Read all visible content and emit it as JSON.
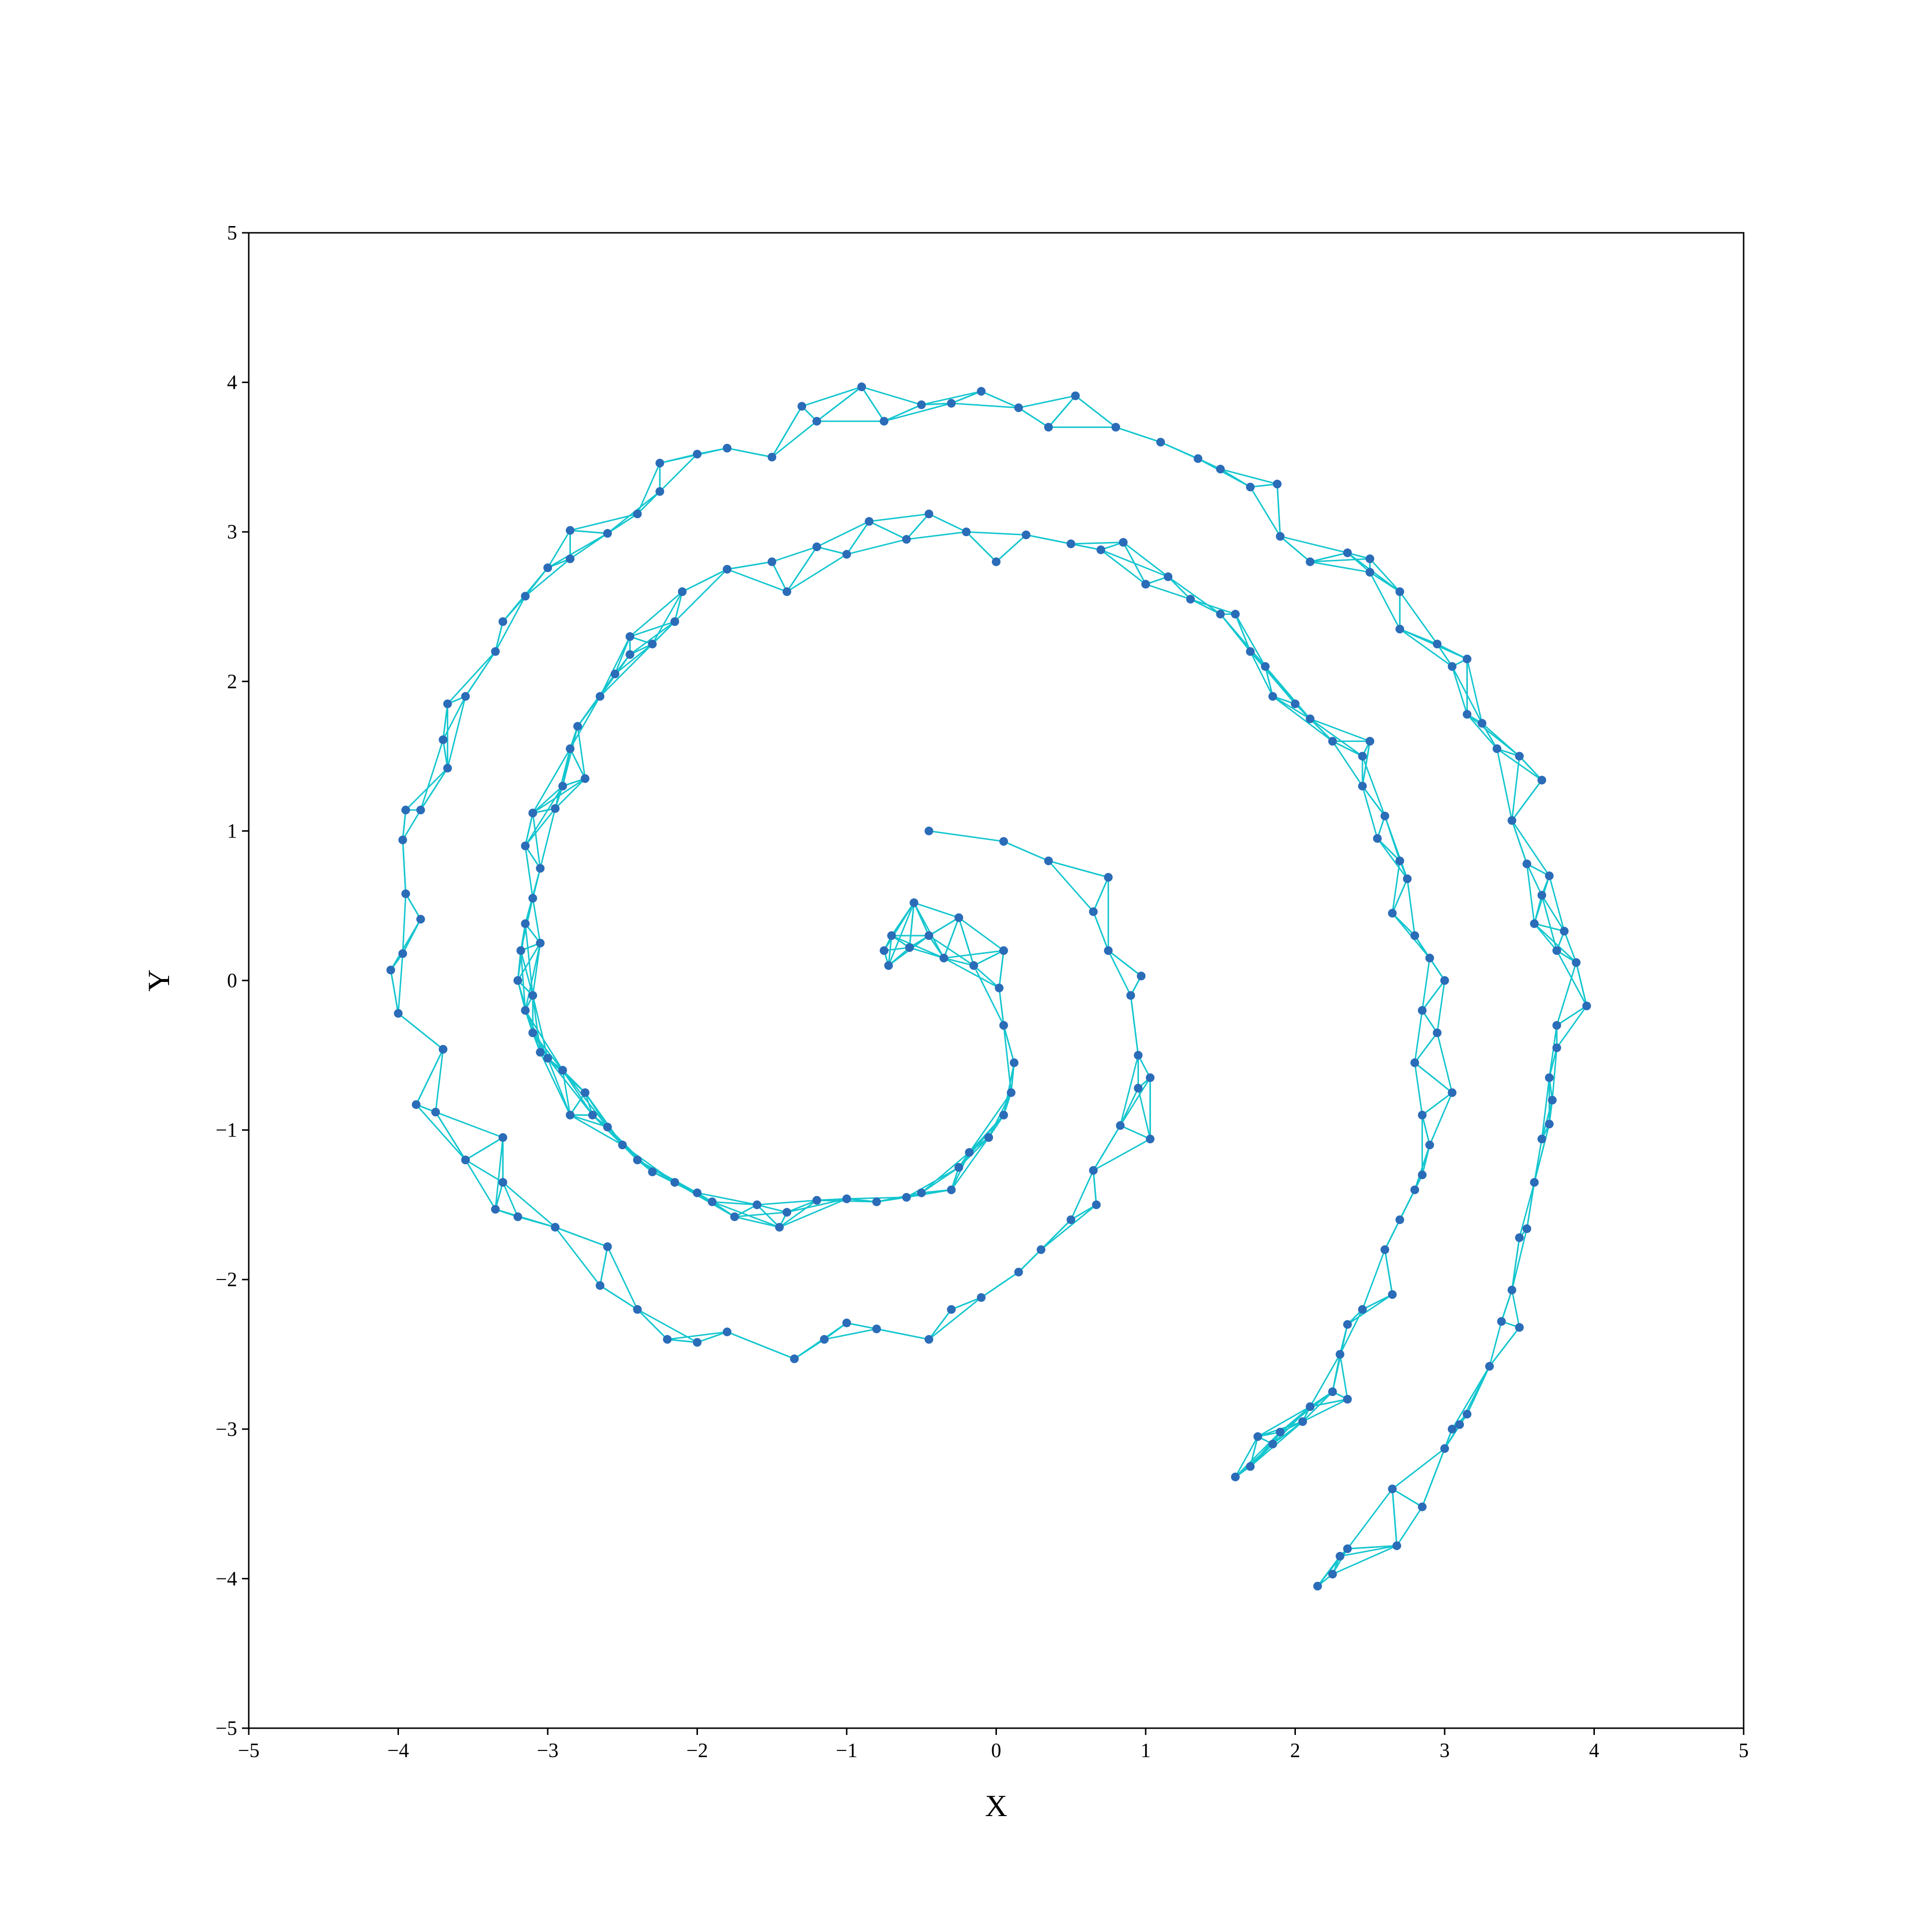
{
  "chart_data": {
    "type": "scatter",
    "title": "",
    "xlabel": "X",
    "ylabel": "Y",
    "xlim": [
      -5,
      5
    ],
    "ylim": [
      -5,
      5
    ],
    "xticks": [
      -5,
      -4,
      -3,
      -2,
      -1,
      0,
      1,
      2,
      3,
      4,
      5
    ],
    "yticks": [
      -5,
      -4,
      -3,
      -2,
      -1,
      0,
      1,
      2,
      3,
      4,
      5
    ],
    "xtick_labels": [
      "−5",
      "−4",
      "−3",
      "−2",
      "−1",
      "0",
      "1",
      "2",
      "3",
      "4",
      "5"
    ],
    "ytick_labels": [
      "−5",
      "−4",
      "−3",
      "−2",
      "−1",
      "0",
      "1",
      "2",
      "3",
      "4",
      "5"
    ],
    "grid": false,
    "legend": "none",
    "colors": {
      "points": "#2b6cb8",
      "edges": "#14c6cf"
    },
    "series": [
      {
        "values": [
          [
            -0.45,
            1.0
          ],
          [
            0.05,
            0.93
          ],
          [
            0.35,
            0.8
          ],
          [
            0.75,
            0.69
          ],
          [
            0.65,
            0.46
          ],
          [
            0.75,
            0.2
          ],
          [
            0.97,
            0.03
          ],
          [
            0.9,
            -0.1
          ],
          [
            0.95,
            -0.5
          ],
          [
            0.95,
            -0.72
          ],
          [
            1.03,
            -0.65
          ],
          [
            1.03,
            -1.06
          ],
          [
            0.83,
            -0.97
          ],
          [
            0.65,
            -1.27
          ],
          [
            0.67,
            -1.5
          ],
          [
            0.5,
            -1.6
          ],
          [
            0.3,
            -1.8
          ],
          [
            0.15,
            -1.95
          ],
          [
            -0.1,
            -2.12
          ],
          [
            -0.3,
            -2.2
          ],
          [
            -0.45,
            -2.4
          ],
          [
            -0.8,
            -2.33
          ],
          [
            -1.0,
            -2.29
          ],
          [
            -1.15,
            -2.4
          ],
          [
            -1.35,
            -2.53
          ],
          [
            -1.8,
            -2.35
          ],
          [
            -2.0,
            -2.42
          ],
          [
            -2.2,
            -2.4
          ],
          [
            -2.4,
            -2.2
          ],
          [
            -2.65,
            -2.04
          ],
          [
            -2.6,
            -1.78
          ],
          [
            -2.95,
            -1.65
          ],
          [
            -3.2,
            -1.58
          ],
          [
            -3.35,
            -1.53
          ],
          [
            -3.3,
            -1.35
          ],
          [
            -3.3,
            -1.05
          ],
          [
            -3.55,
            -1.2
          ],
          [
            -3.75,
            -0.88
          ],
          [
            -3.88,
            -0.83
          ],
          [
            -3.7,
            -0.46
          ],
          [
            -4.0,
            -0.22
          ],
          [
            -4.05,
            0.07
          ],
          [
            -3.97,
            0.18
          ],
          [
            -3.85,
            0.41
          ],
          [
            -3.95,
            0.58
          ],
          [
            -3.97,
            0.94
          ],
          [
            -3.95,
            1.14
          ],
          [
            -3.85,
            1.14
          ],
          [
            -3.67,
            1.42
          ],
          [
            -3.7,
            1.61
          ],
          [
            -3.67,
            1.85
          ],
          [
            -3.55,
            1.9
          ],
          [
            -3.35,
            2.2
          ],
          [
            -3.3,
            2.4
          ],
          [
            -3.15,
            2.57
          ],
          [
            -3.0,
            2.76
          ],
          [
            -2.85,
            2.82
          ],
          [
            -2.85,
            3.01
          ],
          [
            -2.6,
            2.99
          ],
          [
            -2.4,
            3.12
          ],
          [
            -2.25,
            3.27
          ],
          [
            -2.25,
            3.46
          ],
          [
            -2.0,
            3.52
          ],
          [
            -1.8,
            3.56
          ],
          [
            -1.5,
            3.5
          ],
          [
            -1.3,
            3.84
          ],
          [
            -1.2,
            3.74
          ],
          [
            -0.9,
            3.97
          ],
          [
            -0.75,
            3.74
          ],
          [
            -0.5,
            3.85
          ],
          [
            -0.3,
            3.86
          ],
          [
            -0.1,
            3.94
          ],
          [
            0.15,
            3.83
          ],
          [
            0.35,
            3.7
          ],
          [
            0.53,
            3.91
          ],
          [
            0.8,
            3.7
          ],
          [
            1.1,
            3.6
          ],
          [
            1.35,
            3.49
          ],
          [
            1.5,
            3.42
          ],
          [
            1.7,
            3.3
          ],
          [
            1.88,
            3.32
          ],
          [
            1.9,
            2.97
          ],
          [
            2.1,
            2.8
          ],
          [
            2.35,
            2.86
          ],
          [
            2.5,
            2.82
          ],
          [
            2.5,
            2.73
          ],
          [
            2.7,
            2.6
          ],
          [
            2.7,
            2.35
          ],
          [
            2.95,
            2.25
          ],
          [
            3.05,
            2.1
          ],
          [
            3.15,
            2.15
          ],
          [
            3.15,
            1.78
          ],
          [
            3.25,
            1.72
          ],
          [
            3.35,
            1.55
          ],
          [
            3.5,
            1.5
          ],
          [
            3.65,
            1.34
          ],
          [
            3.45,
            1.07
          ],
          [
            3.55,
            0.78
          ],
          [
            3.7,
            0.7
          ],
          [
            3.65,
            0.57
          ],
          [
            3.6,
            0.38
          ],
          [
            3.8,
            0.33
          ],
          [
            3.75,
            0.2
          ],
          [
            3.88,
            0.12
          ],
          [
            3.95,
            -0.17
          ],
          [
            3.75,
            -0.3
          ],
          [
            3.75,
            -0.45
          ],
          [
            3.7,
            -0.65
          ],
          [
            3.72,
            -0.8
          ],
          [
            3.65,
            -1.06
          ],
          [
            3.7,
            -0.96
          ],
          [
            3.6,
            -1.35
          ],
          [
            3.55,
            -1.66
          ],
          [
            3.5,
            -1.72
          ],
          [
            3.45,
            -2.07
          ],
          [
            3.38,
            -2.28
          ],
          [
            3.5,
            -2.32
          ],
          [
            3.3,
            -2.58
          ],
          [
            3.15,
            -2.9
          ],
          [
            3.1,
            -2.97
          ],
          [
            3.0,
            -3.13
          ],
          [
            3.05,
            -3.0
          ],
          [
            2.85,
            -3.52
          ],
          [
            2.65,
            -3.4
          ],
          [
            2.68,
            -3.78
          ],
          [
            2.35,
            -3.8
          ],
          [
            2.3,
            -3.85
          ],
          [
            2.25,
            -3.97
          ],
          [
            2.15,
            -4.05
          ]
        ]
      },
      {
        "values": [
          [
            -0.75,
            0.2
          ],
          [
            -0.72,
            0.1
          ],
          [
            -0.7,
            0.3
          ],
          [
            -0.58,
            0.22
          ],
          [
            -0.55,
            0.52
          ],
          [
            -0.45,
            0.3
          ],
          [
            -0.35,
            0.15
          ],
          [
            -0.25,
            0.42
          ],
          [
            -0.15,
            0.1
          ],
          [
            0.05,
            0.2
          ],
          [
            0.02,
            -0.05
          ],
          [
            0.05,
            -0.3
          ],
          [
            0.12,
            -0.55
          ],
          [
            0.1,
            -0.75
          ],
          [
            0.05,
            -0.9
          ],
          [
            -0.05,
            -1.05
          ],
          [
            -0.18,
            -1.15
          ],
          [
            -0.25,
            -1.25
          ],
          [
            -0.3,
            -1.4
          ],
          [
            -0.5,
            -1.42
          ],
          [
            -0.6,
            -1.45
          ],
          [
            -0.8,
            -1.48
          ],
          [
            -1.0,
            -1.46
          ],
          [
            -1.2,
            -1.47
          ],
          [
            -1.4,
            -1.55
          ],
          [
            -1.45,
            -1.65
          ],
          [
            -1.6,
            -1.5
          ],
          [
            -1.75,
            -1.58
          ],
          [
            -1.9,
            -1.48
          ],
          [
            -2.0,
            -1.42
          ],
          [
            -2.15,
            -1.35
          ],
          [
            -2.3,
            -1.28
          ],
          [
            -2.4,
            -1.2
          ],
          [
            -2.5,
            -1.1
          ],
          [
            -2.6,
            -0.98
          ],
          [
            -2.7,
            -0.9
          ],
          [
            -2.85,
            -0.9
          ],
          [
            -2.75,
            -0.75
          ],
          [
            -2.9,
            -0.6
          ],
          [
            -3.0,
            -0.52
          ],
          [
            -3.05,
            -0.48
          ],
          [
            -3.1,
            -0.35
          ],
          [
            -3.15,
            -0.2
          ],
          [
            -3.1,
            -0.1
          ],
          [
            -3.2,
            0.0
          ],
          [
            -3.18,
            0.2
          ],
          [
            -3.05,
            0.25
          ],
          [
            -3.15,
            0.38
          ],
          [
            -3.1,
            0.55
          ],
          [
            -3.05,
            0.75
          ],
          [
            -3.15,
            0.9
          ],
          [
            -3.1,
            1.12
          ],
          [
            -2.95,
            1.15
          ],
          [
            -2.9,
            1.3
          ],
          [
            -2.75,
            1.35
          ],
          [
            -2.85,
            1.55
          ],
          [
            -2.8,
            1.7
          ],
          [
            -2.65,
            1.9
          ],
          [
            -2.55,
            2.05
          ],
          [
            -2.45,
            2.18
          ],
          [
            -2.45,
            2.3
          ],
          [
            -2.3,
            2.25
          ],
          [
            -2.15,
            2.4
          ],
          [
            -2.1,
            2.6
          ],
          [
            -1.8,
            2.75
          ],
          [
            -1.5,
            2.8
          ],
          [
            -1.4,
            2.6
          ],
          [
            -1.2,
            2.9
          ],
          [
            -1.0,
            2.85
          ],
          [
            -0.85,
            3.07
          ],
          [
            -0.6,
            2.95
          ],
          [
            -0.45,
            3.12
          ],
          [
            -0.2,
            3.0
          ],
          [
            0.0,
            2.8
          ],
          [
            0.2,
            2.98
          ],
          [
            0.5,
            2.92
          ],
          [
            0.7,
            2.88
          ],
          [
            0.85,
            2.93
          ],
          [
            1.0,
            2.65
          ],
          [
            1.15,
            2.7
          ],
          [
            1.3,
            2.55
          ],
          [
            1.5,
            2.45
          ],
          [
            1.6,
            2.45
          ],
          [
            1.7,
            2.2
          ],
          [
            1.8,
            2.1
          ],
          [
            1.85,
            1.9
          ],
          [
            2.0,
            1.85
          ],
          [
            2.1,
            1.75
          ],
          [
            2.25,
            1.6
          ],
          [
            2.45,
            1.5
          ],
          [
            2.5,
            1.6
          ],
          [
            2.45,
            1.3
          ],
          [
            2.6,
            1.1
          ],
          [
            2.55,
            0.95
          ],
          [
            2.7,
            0.8
          ],
          [
            2.75,
            0.68
          ],
          [
            2.65,
            0.45
          ],
          [
            2.8,
            0.3
          ],
          [
            2.9,
            0.15
          ],
          [
            3.0,
            0.0
          ],
          [
            2.85,
            -0.2
          ],
          [
            2.95,
            -0.35
          ],
          [
            2.8,
            -0.55
          ],
          [
            3.05,
            -0.75
          ],
          [
            2.85,
            -0.9
          ],
          [
            2.9,
            -1.1
          ],
          [
            2.85,
            -1.3
          ],
          [
            2.8,
            -1.4
          ],
          [
            2.7,
            -1.6
          ],
          [
            2.6,
            -1.8
          ],
          [
            2.65,
            -2.1
          ],
          [
            2.45,
            -2.2
          ],
          [
            2.35,
            -2.3
          ],
          [
            2.3,
            -2.5
          ],
          [
            2.25,
            -2.75
          ],
          [
            2.35,
            -2.8
          ],
          [
            2.1,
            -2.85
          ],
          [
            2.05,
            -2.95
          ],
          [
            1.9,
            -3.02
          ],
          [
            1.85,
            -3.1
          ],
          [
            1.75,
            -3.05
          ],
          [
            1.7,
            -3.25
          ],
          [
            1.6,
            -3.32
          ]
        ]
      }
    ]
  }
}
